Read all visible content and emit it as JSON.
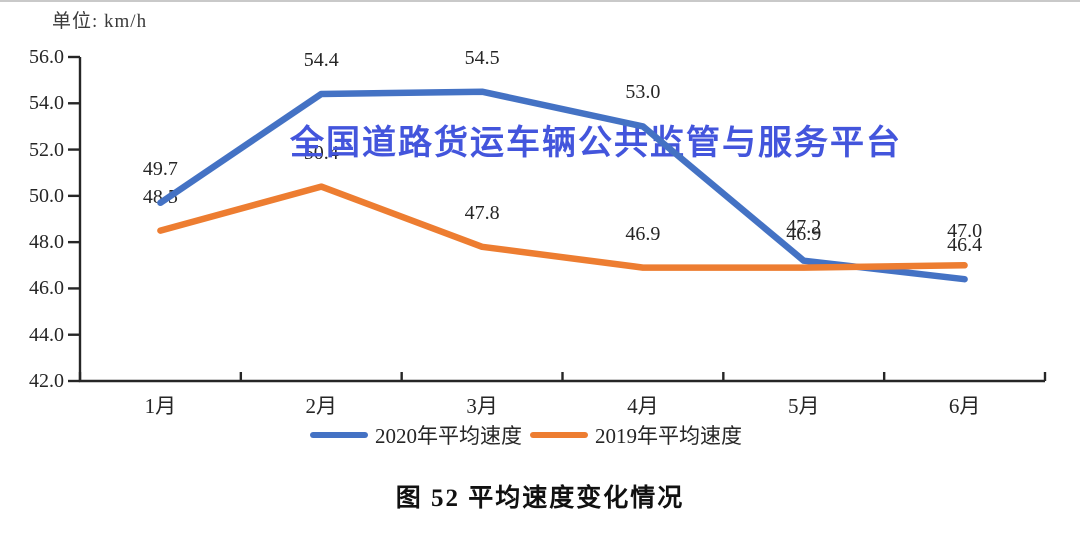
{
  "page": {
    "top_border_color": "#c9c9c9"
  },
  "chart_data": {
    "type": "line",
    "title": "图 52 平均速度变化情况",
    "unit_label": "单位: km/h",
    "watermark": "全国道路货运车辆公共监管与服务平台",
    "watermark_color": "#4355DC",
    "axis_color": "#262626",
    "text_color": "#262626",
    "categories": [
      "1月",
      "2月",
      "3月",
      "4月",
      "5月",
      "6月"
    ],
    "series": [
      {
        "name": "2020年平均速度",
        "color": "#4472C4",
        "values": [
          49.7,
          54.4,
          54.5,
          53.0,
          47.2,
          46.4
        ],
        "labels": [
          "49.7",
          "54.4",
          "54.5",
          "53.0",
          "47.2",
          "46.4"
        ]
      },
      {
        "name": "2019年平均速度",
        "color": "#ED7D31",
        "values": [
          48.5,
          50.4,
          47.8,
          46.9,
          46.9,
          47.0
        ],
        "labels": [
          "48.5",
          "50.4",
          "47.8",
          "46.9",
          "46.9",
          "47.0"
        ]
      }
    ],
    "ylim": [
      42.0,
      56.0
    ],
    "ytick_step": 2.0,
    "ytick_labels": [
      "56.0",
      "54.0",
      "52.0",
      "50.0",
      "48.0",
      "46.0",
      "44.0",
      "42.0"
    ],
    "grid": false,
    "legend_position": "bottom"
  }
}
